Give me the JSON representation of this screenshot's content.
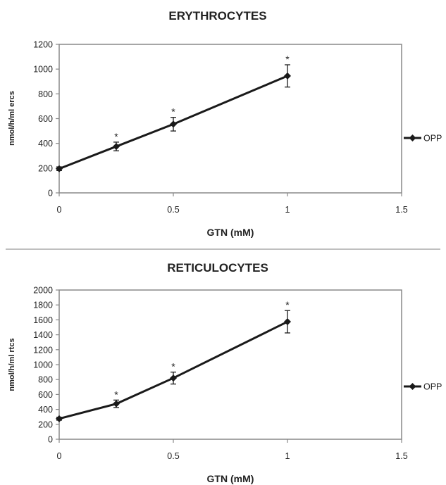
{
  "chart_data": [
    {
      "type": "line",
      "title": "ERYTHROCYTES",
      "xlabel": "GTN (mM)",
      "ylabel": "nmol/h/ml ercs",
      "xlim": [
        0,
        1.5
      ],
      "ylim": [
        0,
        1200
      ],
      "xticks": [
        0,
        0.5,
        1,
        1.5
      ],
      "xtick_labels": [
        "0",
        "0.5",
        "1",
        "1.5"
      ],
      "yticks": [
        0,
        200,
        400,
        600,
        800,
        1000,
        1200
      ],
      "ytick_labels": [
        "0",
        "200",
        "400",
        "600",
        "800",
        "1000",
        "1200"
      ],
      "grid": false,
      "legend_position": "right",
      "series": [
        {
          "name": "OPP",
          "color": "#1a1a1a",
          "marker": "diamond",
          "x": [
            0,
            0.25,
            0.5,
            1
          ],
          "y": [
            195,
            375,
            555,
            945
          ],
          "error": [
            15,
            35,
            55,
            90
          ],
          "annotations": [
            "",
            "*",
            "*",
            "*"
          ]
        }
      ]
    },
    {
      "type": "line",
      "title": "RETICULOCYTES",
      "xlabel": "GTN (mM)",
      "ylabel": "nmol/h/ml rtcs",
      "xlim": [
        0,
        1.5
      ],
      "ylim": [
        0,
        2000
      ],
      "xticks": [
        0,
        0.5,
        1,
        1.5
      ],
      "xtick_labels": [
        "0",
        "0.5",
        "1",
        "1.5"
      ],
      "yticks": [
        0,
        200,
        400,
        600,
        800,
        1000,
        1200,
        1400,
        1600,
        1800,
        2000
      ],
      "ytick_labels": [
        "0",
        "200",
        "400",
        "600",
        "800",
        "1000",
        "1200",
        "1400",
        "1600",
        "1800",
        "2000"
      ],
      "grid": false,
      "legend_position": "right",
      "series": [
        {
          "name": "OPP",
          "color": "#1a1a1a",
          "marker": "diamond",
          "x": [
            0,
            0.25,
            0.5,
            1
          ],
          "y": [
            275,
            475,
            820,
            1575
          ],
          "error": [
            20,
            50,
            80,
            150
          ],
          "annotations": [
            "",
            "*",
            "*",
            "*"
          ]
        }
      ]
    }
  ]
}
